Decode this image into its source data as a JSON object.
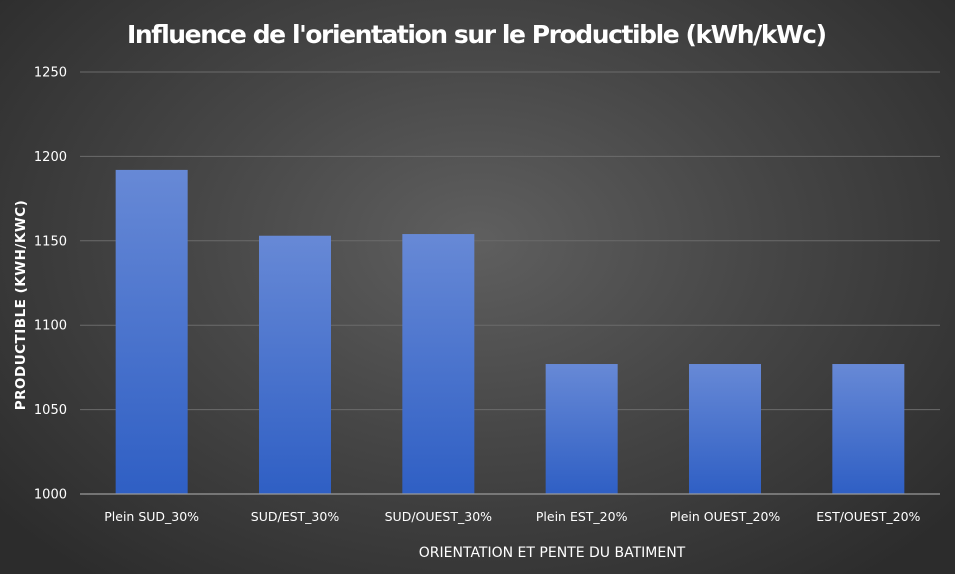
{
  "chart_data": {
    "type": "bar",
    "title": "Influence de l'orientation sur le Productible (kWh/kWc)",
    "xlabel": "ORIENTATION ET PENTE DU BATIMENT",
    "ylabel": "PRODUCTIBLE (KWH/KWC)",
    "categories": [
      "Plein SUD_30%",
      "SUD/EST_30%",
      "SUD/OUEST_30%",
      "Plein EST_20%",
      "Plein OUEST_20%",
      "EST/OUEST_20%"
    ],
    "values": [
      1192,
      1153,
      1154,
      1077,
      1077,
      1077
    ],
    "ylim": [
      1000,
      1250
    ],
    "yticks": [
      1000,
      1050,
      1100,
      1150,
      1200,
      1250
    ],
    "grid": true,
    "legend": "none",
    "colors": {
      "bar_top": "#6789d6",
      "bar_bottom": "#2f5fc4",
      "background": "#474747"
    }
  }
}
